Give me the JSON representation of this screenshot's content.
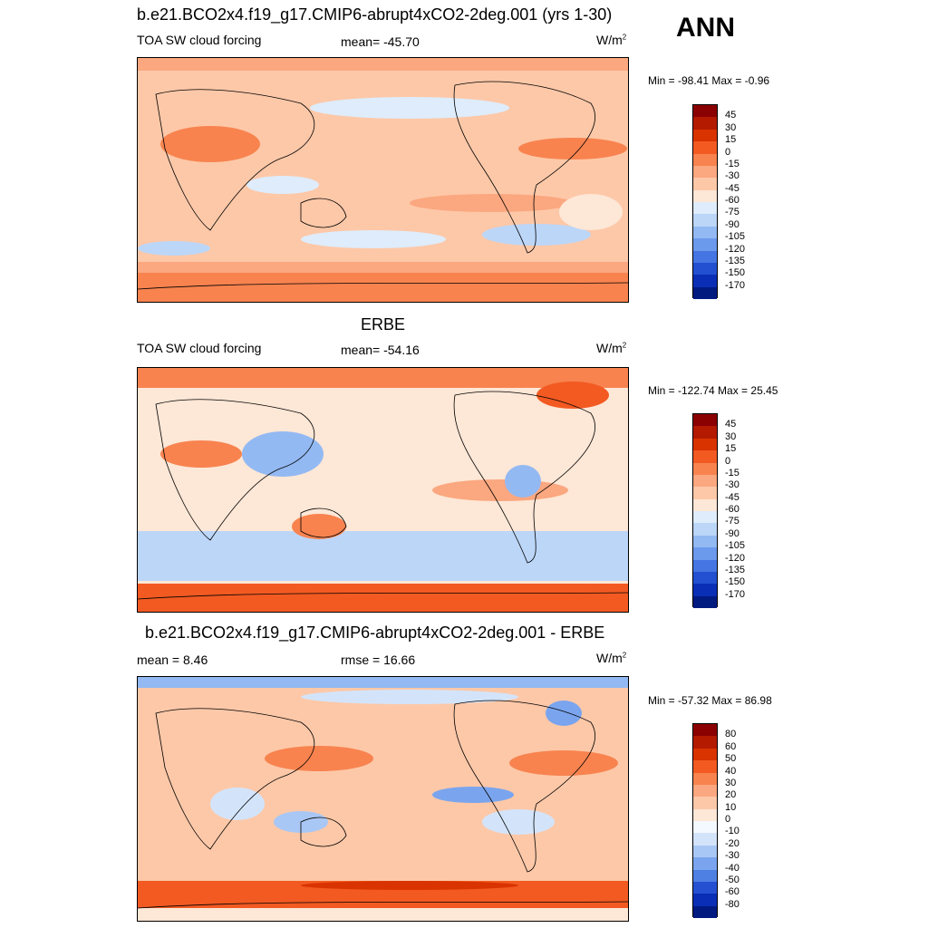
{
  "season": "ANN",
  "panels": [
    {
      "title": "b.e21.BCO2x4.f19_g17.CMIP6-abrupt4xCO2-2deg.001 (yrs 1-30)",
      "left_label": "TOA SW cloud forcing",
      "center_label": "mean= -45.70",
      "units": "W/m",
      "units_sup": "2",
      "minmax": "Min = -98.41 Max =  -0.96",
      "map_name": "model-map"
    },
    {
      "title": "ERBE",
      "left_label": "TOA SW cloud forcing",
      "center_label": "mean= -54.16",
      "units": "W/m",
      "units_sup": "2",
      "minmax": "Min = -122.74 Max =  25.45",
      "map_name": "obs-map"
    },
    {
      "title": "b.e21.BCO2x4.f19_g17.CMIP6-abrupt4xCO2-2deg.001 - ERBE",
      "left_label": "mean =   8.46",
      "center_label": "rmse =  16.66",
      "units": "W/m",
      "units_sup": "2",
      "minmax": "Min = -57.32 Max =  86.98",
      "map_name": "diff-map"
    }
  ],
  "colorbar_abs": {
    "labels": [
      "45",
      "30",
      "15",
      "0",
      "-15",
      "-30",
      "-45",
      "-60",
      "-75",
      "-90",
      "-105",
      "-120",
      "-135",
      "-150",
      "-170"
    ],
    "colors": [
      "#8b0000",
      "#b31a00",
      "#d93300",
      "#f25a22",
      "#f8834f",
      "#fba77f",
      "#fdc8a8",
      "#fde7d6",
      "#deecfb",
      "#bcd6f8",
      "#93b9f3",
      "#6b99ec",
      "#4475e2",
      "#2250d0",
      "#0a2eb5",
      "#001a80"
    ]
  },
  "colorbar_diff": {
    "labels": [
      "80",
      "60",
      "50",
      "40",
      "30",
      "20",
      "10",
      "0",
      "-10",
      "-20",
      "-30",
      "-40",
      "-50",
      "-60",
      "-80"
    ],
    "colors": [
      "#8b0000",
      "#b31a00",
      "#d93300",
      "#f25a22",
      "#f8834f",
      "#fba77f",
      "#fdc8a8",
      "#fde7d6",
      "#f4f8ff",
      "#d3e4fa",
      "#a9c7f5",
      "#7aa5ee",
      "#4e80e4",
      "#2650d2",
      "#0a2eb5",
      "#001a80"
    ]
  }
}
